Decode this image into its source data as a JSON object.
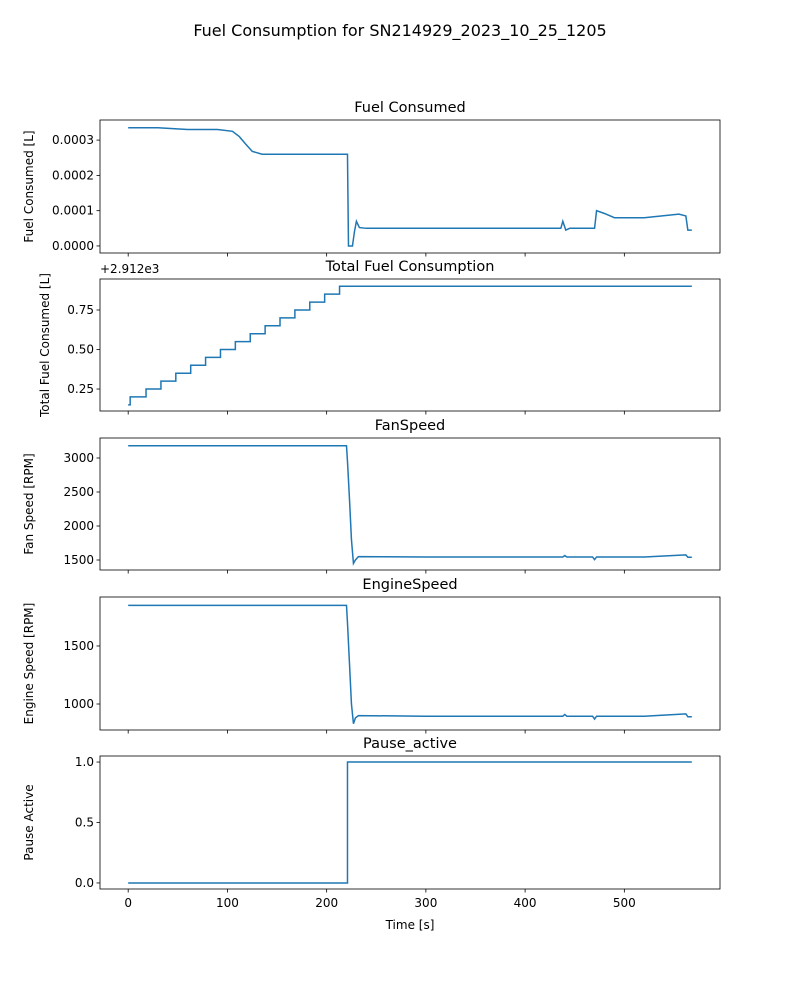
{
  "title": "Fuel Consumption for SN214929_2023_10_25_1205",
  "chart_data": [
    {
      "type": "line",
      "title": "Fuel Consumed",
      "ylabel": "Fuel Consumed [L]",
      "show_xticklabels": false,
      "xlim": [
        -28.4,
        596.4
      ],
      "xticks": [
        0,
        100,
        200,
        300,
        400,
        500
      ],
      "ylim": [
        -2e-05,
        0.000357
      ],
      "yticks": [
        {
          "value": 0,
          "label": "0.0000"
        },
        {
          "value": 0.0001,
          "label": "0.0001"
        },
        {
          "value": 0.0002,
          "label": "0.0002"
        },
        {
          "value": 0.0003,
          "label": "0.0003"
        }
      ],
      "series": [
        {
          "name": "Fuel Consumed",
          "color": "#1f77b4",
          "x": [
            0,
            30,
            60,
            90,
            105,
            112,
            118,
            125,
            135,
            180,
            221,
            222,
            226,
            228,
            230,
            233,
            240,
            300,
            400,
            436,
            438,
            441,
            445,
            470,
            472,
            480,
            490,
            520,
            555,
            562,
            564,
            568
          ],
          "values": [
            0.000335,
            0.000335,
            0.00033,
            0.00033,
            0.000325,
            0.00031,
            0.00029,
            0.000268,
            0.00026,
            0.00026,
            0.00026,
            0,
            0,
            4e-05,
            7e-05,
            5.2e-05,
            5e-05,
            5e-05,
            5e-05,
            5e-05,
            7e-05,
            4.5e-05,
            5e-05,
            5e-05,
            0.0001,
            9.2e-05,
            8e-05,
            8e-05,
            9e-05,
            8.5e-05,
            4.5e-05,
            4.5e-05
          ]
        }
      ]
    },
    {
      "type": "line",
      "title": "Total Fuel Consumption",
      "ylabel": "Total Fuel Consumed [L]",
      "show_xticklabels": false,
      "offset_text": "+2.912e3",
      "xlim": [
        -28.4,
        596.4
      ],
      "xticks": [
        0,
        100,
        200,
        300,
        400,
        500
      ],
      "ylim": [
        0.111,
        0.946
      ],
      "yticks": [
        {
          "value": 0.25,
          "label": "0.25"
        },
        {
          "value": 0.5,
          "label": "0.50"
        },
        {
          "value": 0.75,
          "label": "0.75"
        }
      ],
      "series": [
        {
          "name": "Total Fuel Consumption",
          "color": "#1f77b4",
          "x": [
            0,
            2,
            2,
            18,
            18,
            33,
            33,
            48,
            48,
            63,
            63,
            78,
            78,
            93,
            93,
            108,
            108,
            123,
            123,
            138,
            138,
            153,
            153,
            168,
            168,
            183,
            183,
            198,
            198,
            213,
            213,
            568
          ],
          "values": [
            0.15,
            0.15,
            0.2,
            0.2,
            0.25,
            0.25,
            0.3,
            0.3,
            0.35,
            0.35,
            0.4,
            0.4,
            0.45,
            0.45,
            0.5,
            0.5,
            0.55,
            0.55,
            0.6,
            0.6,
            0.65,
            0.65,
            0.7,
            0.7,
            0.75,
            0.75,
            0.8,
            0.8,
            0.85,
            0.85,
            0.9,
            0.9
          ]
        }
      ]
    },
    {
      "type": "line",
      "title": "FanSpeed",
      "ylabel": "Fan Speed [RPM]",
      "show_xticklabels": false,
      "xlim": [
        -28.4,
        596.4
      ],
      "xticks": [
        0,
        100,
        200,
        300,
        400,
        500
      ],
      "ylim": [
        1353,
        3294
      ],
      "yticks": [
        1500,
        2000,
        2500,
        3000
      ],
      "series": [
        {
          "name": "FanSpeed",
          "color": "#1f77b4",
          "x": [
            0,
            100,
            220,
            221,
            223,
            225,
            227,
            229,
            232,
            300,
            400,
            438,
            440,
            442,
            468,
            470,
            472,
            520,
            562,
            564,
            568
          ],
          "values": [
            3180,
            3180,
            3180,
            2950,
            2400,
            1800,
            1450,
            1500,
            1550,
            1545,
            1545,
            1545,
            1565,
            1545,
            1545,
            1505,
            1545,
            1545,
            1575,
            1540,
            1540
          ]
        }
      ]
    },
    {
      "type": "line",
      "title": "EngineSpeed",
      "ylabel": "Engine Speed [RPM]",
      "show_xticklabels": false,
      "xlim": [
        -28.4,
        596.4
      ],
      "xticks": [
        0,
        100,
        200,
        300,
        400,
        500
      ],
      "ylim": [
        776,
        1922
      ],
      "yticks": [
        1000,
        1500
      ],
      "series": [
        {
          "name": "EngineSpeed",
          "color": "#1f77b4",
          "x": [
            0,
            100,
            220,
            221,
            223,
            225,
            227,
            229,
            232,
            300,
            400,
            438,
            440,
            442,
            468,
            470,
            472,
            520,
            562,
            564,
            568
          ],
          "values": [
            1850,
            1850,
            1850,
            1700,
            1350,
            1000,
            830,
            880,
            900,
            895,
            895,
            895,
            910,
            895,
            895,
            870,
            895,
            895,
            915,
            890,
            890
          ]
        }
      ]
    },
    {
      "type": "line",
      "title": "Pause_active",
      "ylabel": "Pause Active",
      "xlabel": "Time [s]",
      "show_xticklabels": true,
      "xlim": [
        -28.4,
        596.4
      ],
      "xticks": [
        0,
        100,
        200,
        300,
        400,
        500
      ],
      "ylim": [
        -0.05,
        1.05
      ],
      "yticks": [
        {
          "value": 0,
          "label": "0.0"
        },
        {
          "value": 0.5,
          "label": "0.5"
        },
        {
          "value": 1,
          "label": "1.0"
        }
      ],
      "series": [
        {
          "name": "Pause_active",
          "color": "#1f77b4",
          "x": [
            0,
            221,
            221,
            568
          ],
          "values": [
            0,
            0,
            1,
            1
          ]
        }
      ]
    }
  ]
}
